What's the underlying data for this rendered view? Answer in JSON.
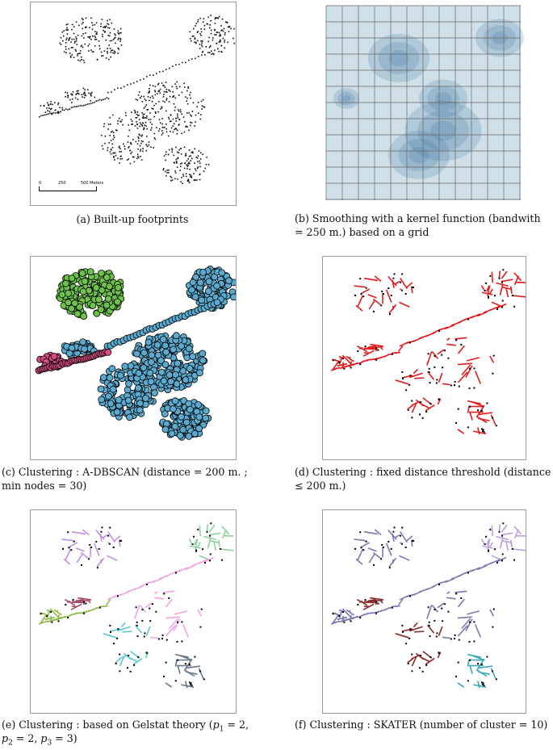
{
  "figure": {
    "panels": [
      {
        "id": "a",
        "caption": "(a) Built-up footprints"
      },
      {
        "id": "b",
        "caption_line1": "(b) Smoothing with a kernel function (bandwith",
        "caption_line2": "= 250 m.) based on a grid"
      },
      {
        "id": "c",
        "caption_line1": "(c) Clustering : A-DBSCAN (distance = 200 m. ;",
        "caption_line2": "min nodes = 30)"
      },
      {
        "id": "d",
        "caption_line1": "(d) Clustering : fixed distance threshold (distance",
        "caption_line2": "≤ 200 m.)"
      },
      {
        "id": "e",
        "caption_line1_pre": "(e) Clustering : based on Gelstat theory (",
        "caption_line1_p1": "p",
        "caption_line1_p1sub": "1",
        "caption_line1_mid": " = 2,",
        "caption_line2_p2": "p",
        "caption_line2_p2sub": "2",
        "caption_line2_mid": " = 2, ",
        "caption_line2_p3": "p",
        "caption_line2_p3sub": "3",
        "caption_line2_end": " = 3)"
      },
      {
        "id": "f",
        "caption": "(f) Clustering : SKATER (number of cluster = 10)"
      }
    ],
    "scalebar": {
      "labels": [
        "0",
        "250",
        "500 Meters"
      ]
    }
  },
  "colors": {
    "footprint": "#111111",
    "kernel_light": "#cfe0e8",
    "kernel_dark": "#2f6a99",
    "dbscan_blue": "#5aa9cf",
    "dbscan_green": "#6cc24a",
    "dbscan_pink": "#d94b84",
    "threshold_red": "#e31a1c"
  }
}
